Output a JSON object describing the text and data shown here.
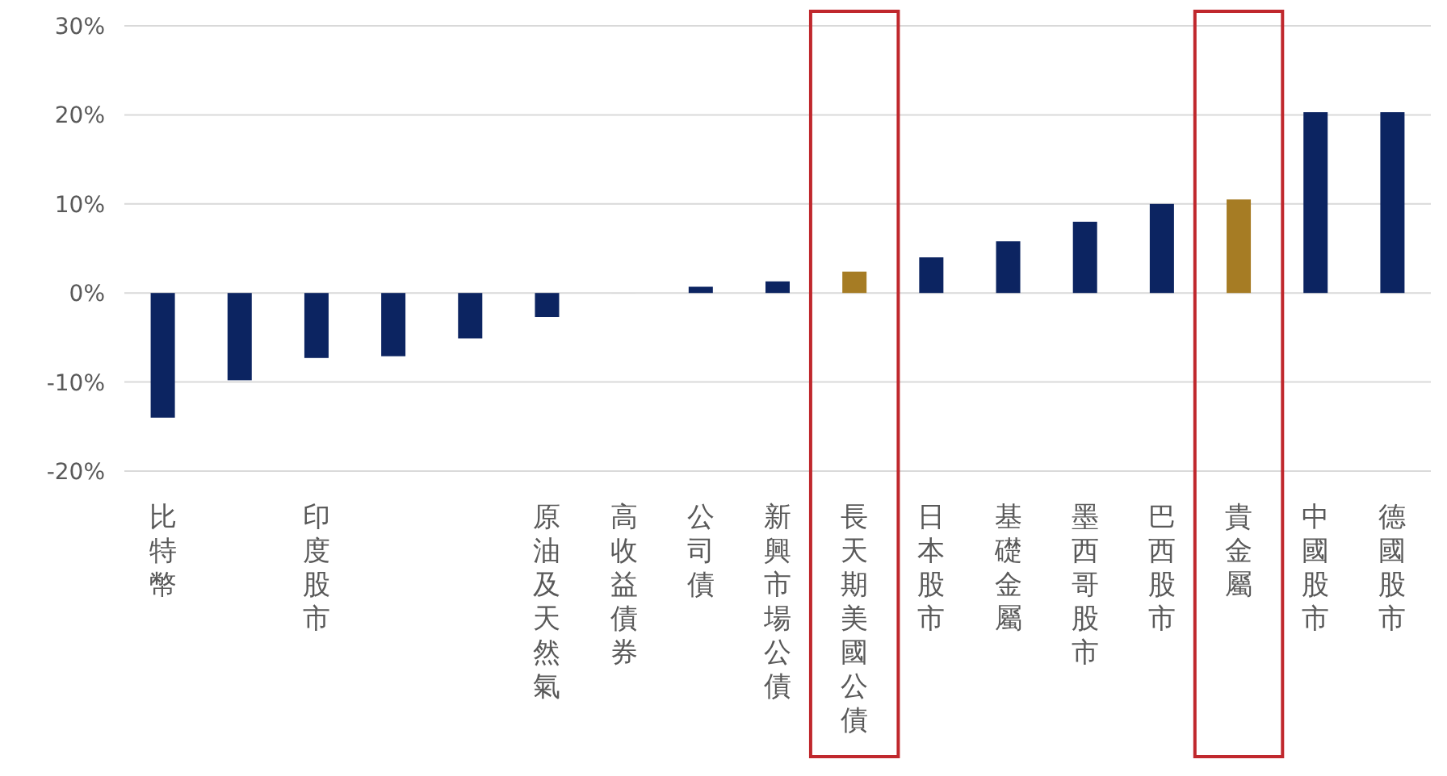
{
  "chart_data": {
    "type": "bar",
    "categories": [
      "比特幣",
      null,
      "印度股市",
      null,
      null,
      "原油及天然氣",
      "高收益債券",
      "公司債",
      "新興市場公債",
      "長天期美國公債",
      "日本股市",
      "基礎金屬",
      "墨西哥股市",
      "巴西股市",
      "貴金屬",
      "中國股市",
      "德國股市"
    ],
    "values": [
      -14.0,
      -9.8,
      -7.3,
      -7.1,
      -5.1,
      -2.7,
      0,
      0.7,
      1.3,
      2.4,
      4.0,
      5.8,
      8.0,
      10.0,
      10.5,
      20.3,
      20.3
    ],
    "colors": [
      "#0c2461",
      "#0c2461",
      "#0c2461",
      "#0c2461",
      "#0c2461",
      "#0c2461",
      "#0c2461",
      "#0c2461",
      "#0c2461",
      "#a67c24",
      "#0c2461",
      "#0c2461",
      "#0c2461",
      "#0c2461",
      "#a67c24",
      "#0c2461",
      "#0c2461"
    ],
    "ylim": [
      -20,
      30
    ],
    "yticks": [
      {
        "value": -20,
        "label": "-20%"
      },
      {
        "value": -10,
        "label": "-10%"
      },
      {
        "value": 0,
        "label": "0%"
      },
      {
        "value": 10,
        "label": "10%"
      },
      {
        "value": 20,
        "label": "20%"
      },
      {
        "value": 30,
        "label": "30%"
      }
    ],
    "grid": "y"
  }
}
